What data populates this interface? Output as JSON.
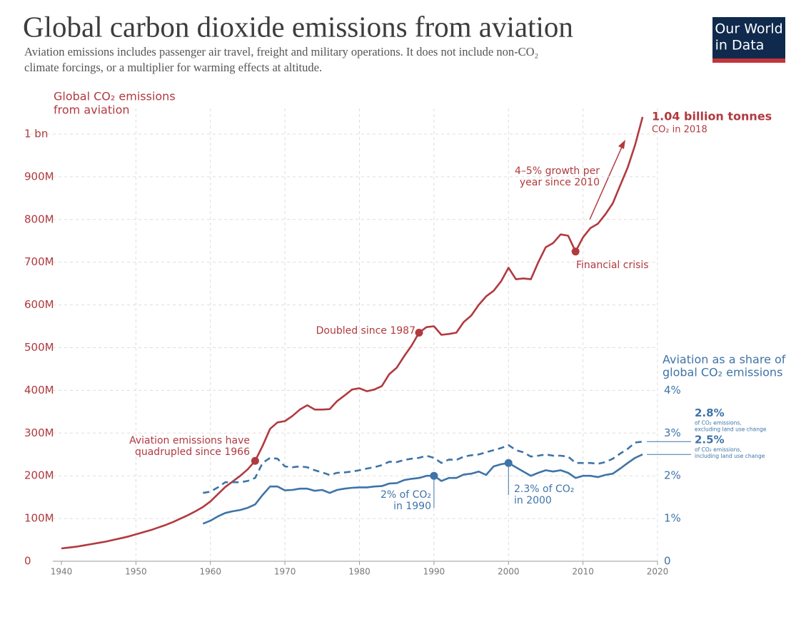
{
  "chart_data": {
    "type": "line",
    "title": "Global carbon dioxide emissions from aviation",
    "subtitle": [
      "Aviation emissions includes passenger air travel, freight and military operations. It does not include non-CO₂",
      "climate forcings, or a multiplier for warming effects at altitude."
    ],
    "logo": [
      "Our World",
      "in Data"
    ],
    "y_label": [
      "Global CO₂ emissions",
      "from aviation"
    ],
    "y2_label": [
      "Aviation as a share of",
      "global CO₂ emissions"
    ],
    "xlim": [
      1940,
      2020
    ],
    "xticks": [
      1940,
      1950,
      1960,
      1970,
      1980,
      1990,
      2000,
      2010,
      2020
    ],
    "ylim": [
      0,
      1060000000
    ],
    "yticks": [
      0,
      {
        "value": 100000000,
        "label": "100M"
      },
      {
        "value": 200000000,
        "label": "200M"
      },
      {
        "value": 300000000,
        "label": "300M"
      },
      {
        "value": 400000000,
        "label": "400M"
      },
      {
        "value": 500000000,
        "label": "500M"
      },
      {
        "value": 600000000,
        "label": "600M"
      },
      {
        "value": 700000000,
        "label": "700M"
      },
      {
        "value": 800000000,
        "label": "800M"
      },
      {
        "value": 900000000,
        "label": "900M"
      },
      {
        "value": 1000000000,
        "label": "1 bn"
      }
    ],
    "y2lim": [
      0,
      10.6
    ],
    "y2ticks": [
      0,
      {
        "value": 1,
        "label": "1%"
      },
      {
        "value": 2,
        "label": "2%"
      },
      {
        "value": 3,
        "label": "3%"
      },
      {
        "value": 4,
        "label": "4%"
      }
    ],
    "grid": true,
    "x": [
      1940,
      1941,
      1942,
      1943,
      1944,
      1945,
      1946,
      1947,
      1948,
      1949,
      1950,
      1951,
      1952,
      1953,
      1954,
      1955,
      1956,
      1957,
      1958,
      1959,
      1960,
      1961,
      1962,
      1963,
      1964,
      1965,
      1966,
      1967,
      1968,
      1969,
      1970,
      1971,
      1972,
      1973,
      1974,
      1975,
      1976,
      1977,
      1978,
      1979,
      1980,
      1981,
      1982,
      1983,
      1984,
      1985,
      1986,
      1987,
      1988,
      1989,
      1990,
      1991,
      1992,
      1993,
      1994,
      1995,
      1996,
      1997,
      1998,
      1999,
      2000,
      2001,
      2002,
      2003,
      2004,
      2005,
      2006,
      2007,
      2008,
      2009,
      2010,
      2011,
      2012,
      2013,
      2014,
      2015,
      2016,
      2017,
      2018
    ],
    "series": [
      {
        "color": "#b13a3f",
        "dash": false,
        "end_label": "1.04 billion tonnes",
        "end_note": [
          "CO₂ in 2018"
        ],
        "values": [
          30000000,
          32000000,
          34000000,
          37000000,
          40000000,
          43000000,
          46000000,
          50000000,
          54000000,
          58000000,
          63000000,
          68000000,
          73000000,
          79000000,
          85000000,
          92000000,
          100000000,
          108000000,
          117000000,
          127000000,
          140000000,
          157000000,
          174000000,
          187000000,
          200000000,
          215000000,
          235000000,
          270000000,
          310000000,
          325000000,
          328000000,
          340000000,
          355000000,
          365000000,
          355000000,
          355000000,
          356000000,
          375000000,
          388000000,
          402000000,
          405000000,
          398000000,
          402000000,
          410000000,
          438000000,
          453000000,
          480000000,
          505000000,
          535000000,
          548000000,
          550000000,
          530000000,
          532000000,
          535000000,
          560000000,
          575000000,
          600000000,
          620000000,
          633000000,
          655000000,
          687000000,
          660000000,
          662000000,
          660000000,
          700000000,
          735000000,
          745000000,
          765000000,
          762000000,
          725000000,
          758000000,
          780000000,
          790000000,
          812000000,
          838000000,
          880000000,
          922000000,
          975000000,
          1040000000
        ]
      },
      {
        "color": "#3e74a8",
        "dash": true,
        "axis": "y2",
        "end_label": "2.8%",
        "end_note": [
          "of CO₂ emissions,",
          "excluding land use change"
        ],
        "values": [
          null,
          null,
          null,
          null,
          null,
          null,
          null,
          null,
          null,
          null,
          null,
          null,
          null,
          null,
          null,
          null,
          null,
          null,
          null,
          1.6,
          1.63,
          1.73,
          1.85,
          1.85,
          1.85,
          1.88,
          1.95,
          2.3,
          2.42,
          2.4,
          2.22,
          2.2,
          2.22,
          2.2,
          2.13,
          2.08,
          2.02,
          2.07,
          2.08,
          2.1,
          2.13,
          2.17,
          2.2,
          2.25,
          2.33,
          2.32,
          2.37,
          2.4,
          2.42,
          2.47,
          2.42,
          2.3,
          2.38,
          2.37,
          2.45,
          2.48,
          2.5,
          2.55,
          2.6,
          2.65,
          2.72,
          2.6,
          2.55,
          2.45,
          2.47,
          2.5,
          2.47,
          2.47,
          2.45,
          2.3,
          2.3,
          2.3,
          2.28,
          2.32,
          2.4,
          2.52,
          2.63,
          2.78,
          2.8
        ]
      },
      {
        "color": "#3e74a8",
        "dash": false,
        "axis": "y2",
        "end_label": "2.5%",
        "end_note": [
          "of CO₂ emissions,",
          "including land use change"
        ],
        "values": [
          null,
          null,
          null,
          null,
          null,
          null,
          null,
          null,
          null,
          null,
          null,
          null,
          null,
          null,
          null,
          null,
          null,
          null,
          null,
          0.88,
          0.95,
          1.05,
          1.13,
          1.17,
          1.2,
          1.25,
          1.33,
          1.55,
          1.75,
          1.75,
          1.66,
          1.67,
          1.7,
          1.7,
          1.65,
          1.67,
          1.6,
          1.67,
          1.7,
          1.72,
          1.73,
          1.73,
          1.75,
          1.76,
          1.82,
          1.83,
          1.9,
          1.93,
          1.95,
          2.0,
          2.0,
          1.88,
          1.95,
          1.95,
          2.03,
          2.05,
          2.1,
          2.02,
          2.22,
          2.27,
          2.3,
          2.2,
          2.1,
          2.0,
          2.07,
          2.13,
          2.1,
          2.13,
          2.07,
          1.95,
          2.0,
          2.0,
          1.97,
          2.02,
          2.05,
          2.17,
          2.3,
          2.42,
          2.5
        ]
      }
    ],
    "annotations": [
      {
        "text": [
          "Aviation emissions have",
          "quadrupled since 1966"
        ],
        "x": 1966,
        "y": 235000000
      },
      {
        "text": [
          "Doubled since 1987"
        ],
        "x": 1988,
        "y": 535000000
      },
      {
        "text": [
          "Financial crisis"
        ],
        "x": 2009,
        "y": 725000000
      },
      {
        "text": [
          "4–5% growth per",
          "year since 2010"
        ]
      },
      {
        "text": [
          "2% of CO₂",
          "in 1990"
        ],
        "x": 1990,
        "y": 2.0,
        "axis": "y2"
      },
      {
        "text": [
          "2.3% of CO₂",
          "in 2000"
        ],
        "x": 2000,
        "y": 2.3,
        "axis": "y2"
      }
    ]
  }
}
